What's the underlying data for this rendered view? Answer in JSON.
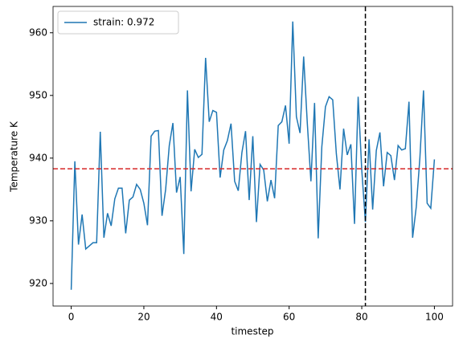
{
  "chart_data": {
    "type": "line",
    "xlabel": "timestep",
    "ylabel": "Temperature K",
    "x": [
      0,
      1,
      2,
      3,
      4,
      5,
      6,
      7,
      8,
      9,
      10,
      11,
      12,
      13,
      14,
      15,
      16,
      17,
      18,
      19,
      20,
      21,
      22,
      23,
      24,
      25,
      26,
      27,
      28,
      29,
      30,
      31,
      32,
      33,
      34,
      35,
      36,
      37,
      38,
      39,
      40,
      41,
      42,
      43,
      44,
      45,
      46,
      47,
      48,
      49,
      50,
      51,
      52,
      53,
      54,
      55,
      56,
      57,
      58,
      59,
      60,
      61,
      62,
      63,
      64,
      65,
      66,
      67,
      68,
      69,
      70,
      71,
      72,
      73,
      74,
      75,
      76,
      77,
      78,
      79,
      80,
      81,
      82,
      83,
      84,
      85,
      86,
      87,
      88,
      89,
      90,
      91,
      92,
      93,
      94,
      95,
      96,
      97,
      98,
      99,
      100
    ],
    "series": [
      {
        "name": "strain: 0.972",
        "color": "#1f77b4",
        "values": [
          919,
          939.5,
          926.2,
          931,
          925.5,
          926,
          926.5,
          926.5,
          944.2,
          927.3,
          931.2,
          929.2,
          933.5,
          935.2,
          935.2,
          928,
          933.3,
          933.8,
          935.8,
          935,
          932.8,
          929.3,
          943.5,
          944.3,
          944.4,
          930.8,
          935,
          942,
          945.6,
          934.5,
          937,
          924.7,
          950.8,
          934.7,
          941.4,
          940.1,
          940.6,
          956,
          945.8,
          947.6,
          947.3,
          936.9,
          941.3,
          942.8,
          945.5,
          936.3,
          934.8,
          940.9,
          944.3,
          933.3,
          943.5,
          929.8,
          939,
          938.1,
          933.1,
          936.5,
          933.6,
          945.2,
          945.8,
          948.4,
          942.3,
          961.8,
          946.6,
          944,
          956.2,
          945.6,
          936.3,
          948.8,
          927.2,
          941.8,
          948.2,
          949.8,
          949.3,
          940.7,
          935,
          944.7,
          940.5,
          942.2,
          929.5,
          949.8,
          938.1,
          929.8,
          943,
          931.8,
          941.2,
          944.1,
          935.5,
          940.9,
          940.4,
          936.5,
          942,
          941.3,
          941.5,
          949,
          927.3,
          932.2,
          940,
          950.8,
          932.8,
          932,
          939.8
        ]
      }
    ],
    "hline": {
      "value": 938.3,
      "color": "#d62728"
    },
    "vline": {
      "value": 81,
      "color": "#000000"
    },
    "xlim": [
      -5,
      105
    ],
    "ylim": [
      916.4,
      964.2
    ],
    "xticks": [
      0,
      20,
      40,
      60,
      80,
      100
    ],
    "yticks": [
      920,
      930,
      940,
      950,
      960
    ],
    "legend": "upper-left"
  }
}
